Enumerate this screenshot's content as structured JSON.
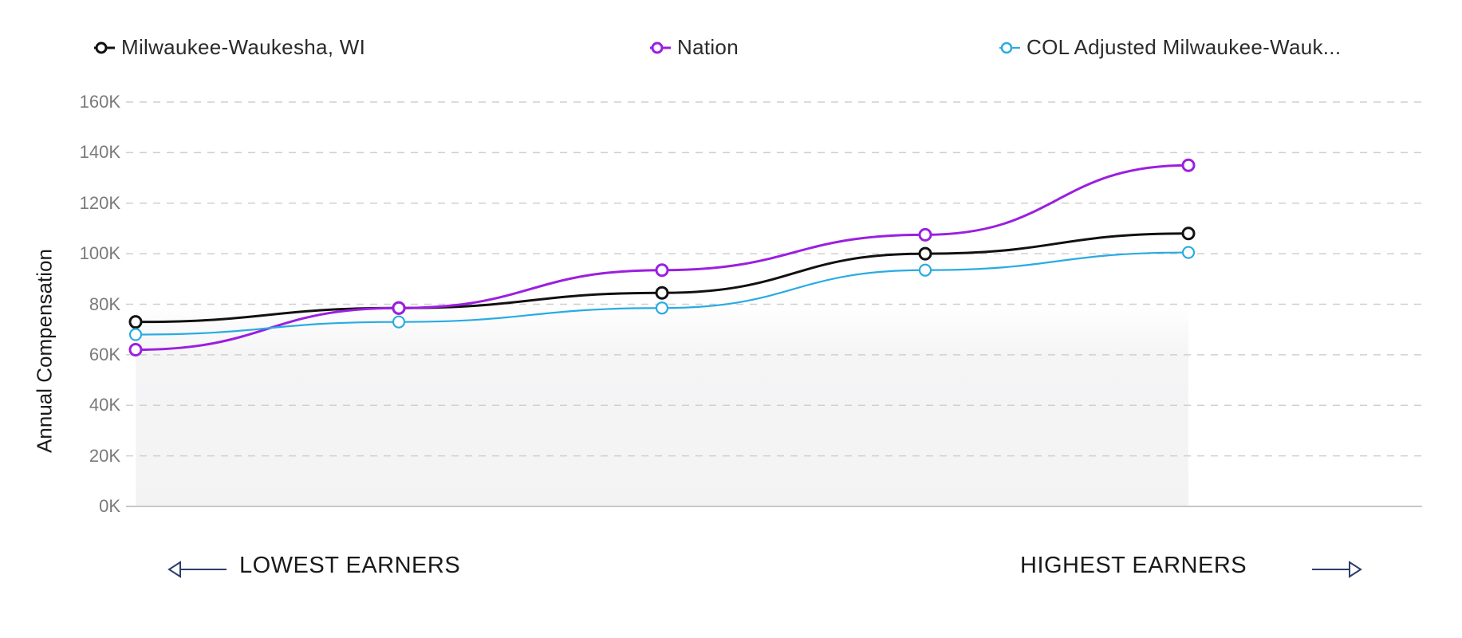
{
  "legend": {
    "items": [
      {
        "label": "Milwaukee-Waukesha, WI",
        "color": "#111111",
        "icon": "circle-marker-icon"
      },
      {
        "label": "Nation",
        "color": "#9b1fe0",
        "icon": "circle-marker-icon"
      },
      {
        "label": "COL Adjusted Milwaukee-Wauk...",
        "color": "#29abe2",
        "icon": "circle-marker-icon"
      }
    ]
  },
  "axis": {
    "ylabel": "Annual Compensation",
    "yticks": [
      "0K",
      "20K",
      "40K",
      "60K",
      "80K",
      "100K",
      "120K",
      "140K",
      "160K"
    ]
  },
  "annotations": {
    "lowest": "LOWEST EARNERS",
    "highest": "HIGHEST EARNERS",
    "arrow_color": "#2c3e6b"
  },
  "chart_data": {
    "type": "line",
    "title": "",
    "xlabel": "",
    "ylabel": "Annual Compensation",
    "x": [
      1,
      2,
      3,
      4,
      5
    ],
    "ylim": [
      0,
      160000
    ],
    "yticks": [
      0,
      20000,
      40000,
      60000,
      80000,
      100000,
      120000,
      140000,
      160000
    ],
    "ytick_labels": [
      "0K",
      "20K",
      "40K",
      "60K",
      "80K",
      "100K",
      "120K",
      "140K",
      "160K"
    ],
    "grid": "horizontal dashed",
    "legend_position": "top",
    "annotations": [
      "LOWEST EARNERS (left arrow)",
      "HIGHEST EARNERS (right arrow)"
    ],
    "series": [
      {
        "name": "Milwaukee-Waukesha, WI",
        "color": "#111111",
        "values": [
          73000,
          78500,
          84500,
          100000,
          108000
        ]
      },
      {
        "name": "Nation",
        "color": "#9b1fe0",
        "values": [
          62000,
          78500,
          93500,
          107500,
          135000
        ]
      },
      {
        "name": "COL Adjusted Milwaukee-Wauk...",
        "color": "#29abe2",
        "values": [
          68000,
          73000,
          78500,
          93500,
          100500
        ]
      }
    ]
  }
}
